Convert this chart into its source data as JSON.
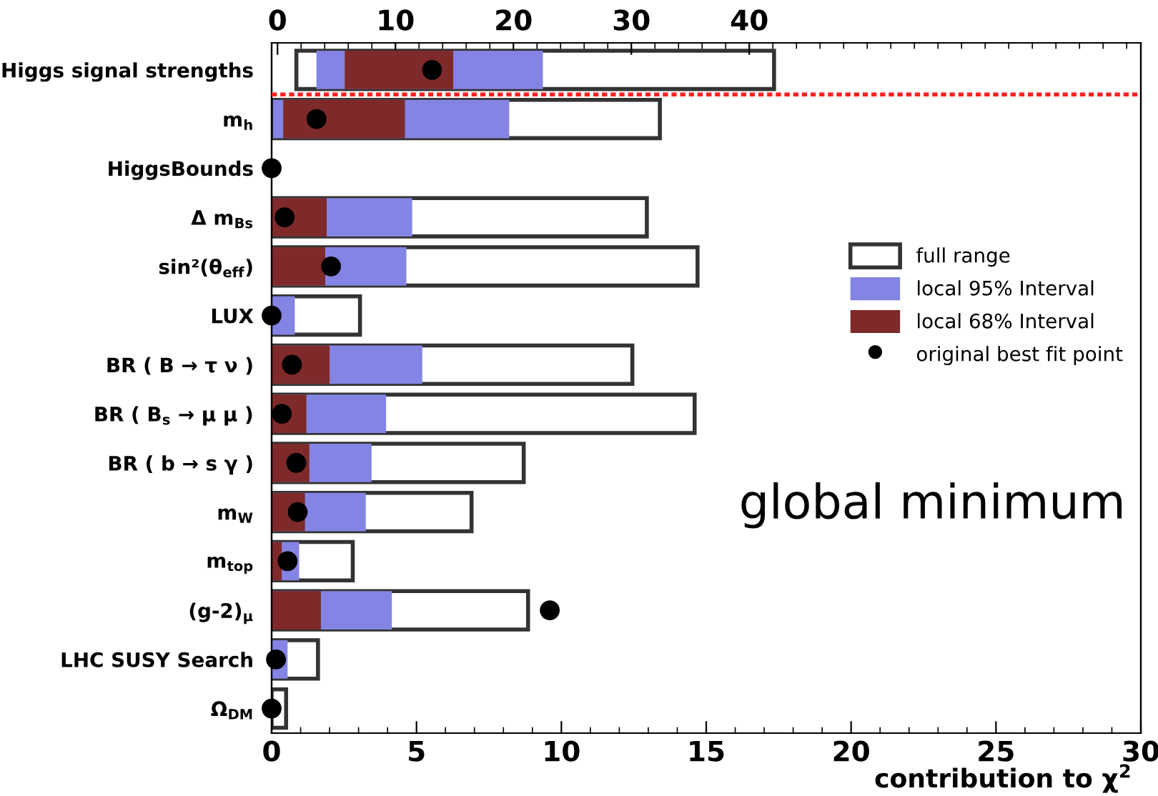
{
  "chart_data": {
    "type": "bar",
    "orientation": "horizontal",
    "categories": [
      "Higgs signal strengths",
      "m$_{h}$",
      "HiggsBounds",
      "Δ m$_{Bs}$",
      "sin²(θ$_{eff}$)",
      "LUX",
      "BR ( B → τ ν )",
      "BR ( B$_{s}$ → μ μ )",
      "BR ( b → s γ )",
      "m$_{W}$",
      "m$_{top}$",
      "(g-2)$_{μ}$",
      "LHC SUSY Search",
      "Ω$_{DM}$"
    ],
    "series": [
      {
        "name": "full range",
        "color": "#ffffff",
        "base": [
          null,
          0.05,
          null,
          0,
          0,
          0,
          0,
          0,
          0,
          0,
          0,
          0,
          0,
          0
        ],
        "values": [
          null,
          13.35,
          null,
          12.95,
          14.7,
          3.05,
          12.45,
          14.6,
          8.7,
          6.9,
          2.8,
          8.85,
          1.6,
          0.5
        ]
      },
      {
        "name": "local 95% Interval",
        "color": "#8484e4",
        "base": [
          null,
          0.05,
          null,
          0,
          0,
          0,
          0,
          0,
          0,
          0,
          0,
          0,
          0,
          null
        ],
        "values": [
          null,
          8.15,
          null,
          4.85,
          4.65,
          0.8,
          5.2,
          3.95,
          3.45,
          3.25,
          0.95,
          4.15,
          0.55,
          null
        ]
      },
      {
        "name": "local 68% Interval",
        "color": "#7e2a2a",
        "base": [
          null,
          0.4,
          null,
          0,
          0,
          null,
          0,
          0,
          0,
          0,
          0,
          0,
          null,
          null
        ],
        "values": [
          null,
          4.2,
          null,
          1.9,
          1.85,
          null,
          2.0,
          1.2,
          1.3,
          1.15,
          0.35,
          1.7,
          null,
          null
        ]
      },
      {
        "name": "original best fit point",
        "type": "scatter",
        "color": "#000000",
        "values": [
          null,
          1.55,
          0,
          0.45,
          2.05,
          0,
          0.7,
          0.35,
          0.85,
          0.9,
          0.55,
          9.6,
          0.15,
          0
        ]
      },
      {
        "axis": "x2",
        "color": "#ffffff",
        "base": [
          1.6,
          null,
          null,
          null,
          null,
          null,
          null,
          null,
          null,
          null,
          null,
          null,
          null,
          null
        ],
        "values": [
          40.5,
          null,
          null,
          null,
          null,
          null,
          null,
          null,
          null,
          null,
          null,
          null,
          null,
          null
        ]
      },
      {
        "axis": "x2",
        "color": "#8484e4",
        "base": [
          3.3,
          null,
          null,
          null,
          null,
          null,
          null,
          null,
          null,
          null,
          null,
          null,
          null,
          null
        ],
        "values": [
          19.2,
          null,
          null,
          null,
          null,
          null,
          null,
          null,
          null,
          null,
          null,
          null,
          null,
          null
        ]
      },
      {
        "axis": "x2",
        "color": "#7e2a2a",
        "base": [
          5.7,
          null,
          null,
          null,
          null,
          null,
          null,
          null,
          null,
          null,
          null,
          null,
          null,
          null
        ],
        "values": [
          9.2,
          null,
          null,
          null,
          null,
          null,
          null,
          null,
          null,
          null,
          null,
          null,
          null,
          null
        ]
      },
      {
        "axis": "x2",
        "type": "scatter",
        "color": "#000000",
        "values": [
          13.1,
          null,
          null,
          null,
          null,
          null,
          null,
          null,
          null,
          null,
          null,
          null,
          null,
          null
        ]
      }
    ],
    "xlim": [
      0,
      30
    ],
    "xticks": [
      0,
      5,
      10,
      15,
      20,
      25,
      30
    ],
    "xlabel": "contribution to χ$^{2}$",
    "x2lim": [
      -0.5,
      73.2
    ],
    "x2ticks": [
      0,
      10,
      20,
      30,
      40
    ],
    "annotations": [
      "global minimum"
    ],
    "legend": "right",
    "grid": false,
    "marker": "circle"
  }
}
